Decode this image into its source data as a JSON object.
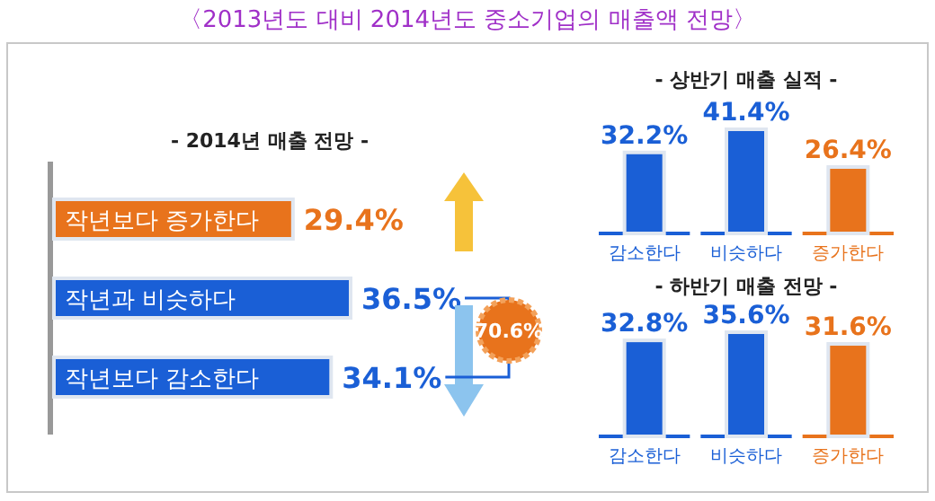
{
  "chart_data": [
    {
      "type": "bar",
      "orientation": "horizontal",
      "title": "〈2013년도 대비 2014년도 중소기업의 매출액 전망〉",
      "subtitle": "- 2014년 매출 전망 -",
      "categories": [
        "작년보다 증가한다",
        "작년과 비슷하다",
        "작년보다 감소한다"
      ],
      "values": [
        29.4,
        36.5,
        34.1
      ],
      "colors": [
        "#e8731c",
        "#1a5fd6",
        "#1a5fd6"
      ],
      "value_labels": [
        "29.4%",
        "36.5%",
        "34.1%"
      ],
      "annotations": [
        "70.6%"
      ]
    },
    {
      "type": "bar",
      "title": "- 상반기 매출 실적 -",
      "categories": [
        "감소한다",
        "비슷하다",
        "증가한다"
      ],
      "values": [
        32.2,
        41.4,
        26.4
      ],
      "colors": [
        "#1a5fd6",
        "#1a5fd6",
        "#e8731c"
      ],
      "value_labels": [
        "32.2%",
        "41.4%",
        "26.4%"
      ]
    },
    {
      "type": "bar",
      "title": "- 하반기 매출 전망 -",
      "categories": [
        "감소한다",
        "비슷하다",
        "증가한다"
      ],
      "values": [
        32.8,
        35.6,
        31.6
      ],
      "colors": [
        "#1a5fd6",
        "#1a5fd6",
        "#e8731c"
      ],
      "value_labels": [
        "32.8%",
        "35.6%",
        "31.6%"
      ]
    }
  ]
}
